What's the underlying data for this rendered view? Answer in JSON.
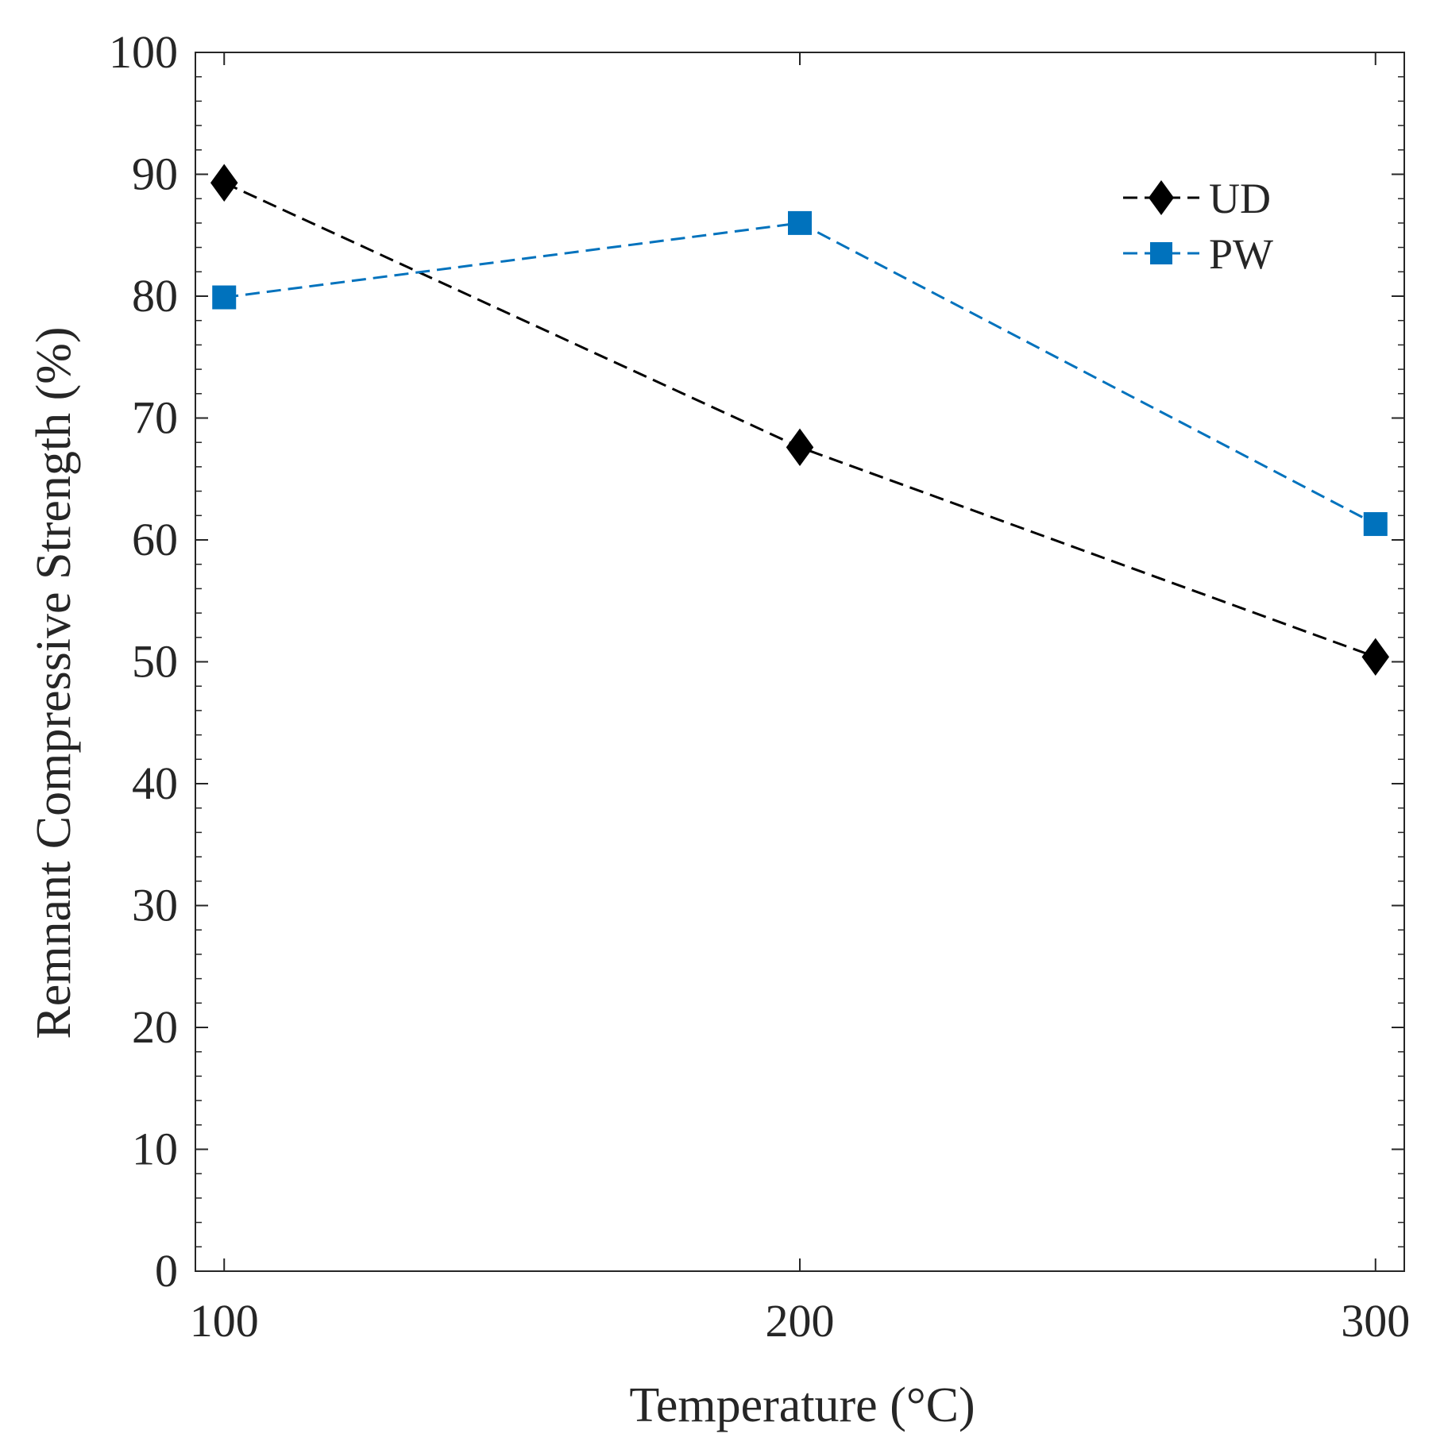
{
  "chart_data": {
    "type": "line",
    "title": "",
    "xlabel": "Temperature (°C)",
    "ylabel": "Remnant Compressive Strength (%)",
    "x": [
      100,
      200,
      300
    ],
    "xlim": [
      95,
      305
    ],
    "ylim": [
      0,
      100
    ],
    "xticks": [
      100,
      200,
      300
    ],
    "xtick_labels": [
      "100",
      "200",
      "300"
    ],
    "yticks": [
      0,
      10,
      20,
      30,
      40,
      50,
      60,
      70,
      80,
      90,
      100
    ],
    "ytick_labels": [
      "0",
      "10",
      "20",
      "30",
      "40",
      "50",
      "60",
      "70",
      "80",
      "90",
      "100"
    ],
    "grid": false,
    "legend_position": "top-right",
    "series": [
      {
        "name": "UD",
        "values": [
          89.3,
          67.6,
          50.4
        ],
        "color": "#000000",
        "marker": "diamond",
        "line_style": "dashed"
      },
      {
        "name": "PW",
        "values": [
          79.9,
          86.0,
          61.3
        ],
        "color": "#0072BD",
        "marker": "square",
        "line_style": "dashed"
      }
    ]
  }
}
